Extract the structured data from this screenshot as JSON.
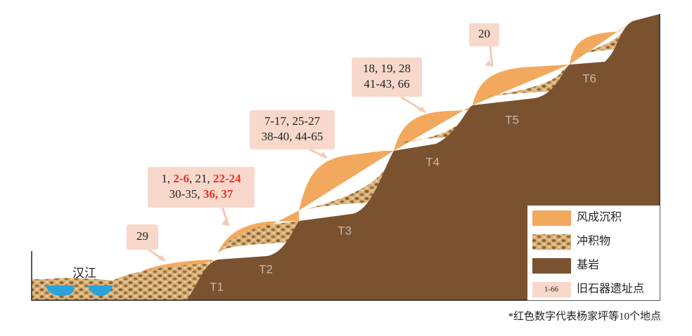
{
  "river": "汉江",
  "terraces": [
    "T1",
    "T2",
    "T3",
    "T4",
    "T5",
    "T6"
  ],
  "highlight_color": "#e8312a",
  "sites": [
    {
      "lines": [
        [
          {
            "text": "29"
          }
        ]
      ]
    },
    {
      "lines": [
        [
          {
            "text": "1, "
          },
          {
            "text": "2-6",
            "highlight": true
          },
          {
            "text": ", 21, "
          },
          {
            "text": "22-24",
            "highlight": true
          }
        ],
        [
          {
            "text": "30-35, "
          },
          {
            "text": "36, 37",
            "highlight": true
          }
        ]
      ]
    },
    {
      "lines": [
        [
          {
            "text": "7-17, 25-27"
          }
        ],
        [
          {
            "text": "38-40, 44-65"
          }
        ]
      ]
    },
    {
      "lines": [
        [
          {
            "text": "18, 19, 28"
          }
        ],
        [
          {
            "text": "41-43, 66"
          }
        ]
      ]
    },
    {
      "lines": [
        [
          {
            "text": "20"
          }
        ]
      ]
    }
  ],
  "legend": [
    {
      "label": "风成沉积"
    },
    {
      "label": "冲积物"
    },
    {
      "label": "基岩"
    },
    {
      "swatch_text": "1-66",
      "label": "旧石器遗址点"
    }
  ],
  "footnote": "*红色数字代表杨家坪等10个地点"
}
